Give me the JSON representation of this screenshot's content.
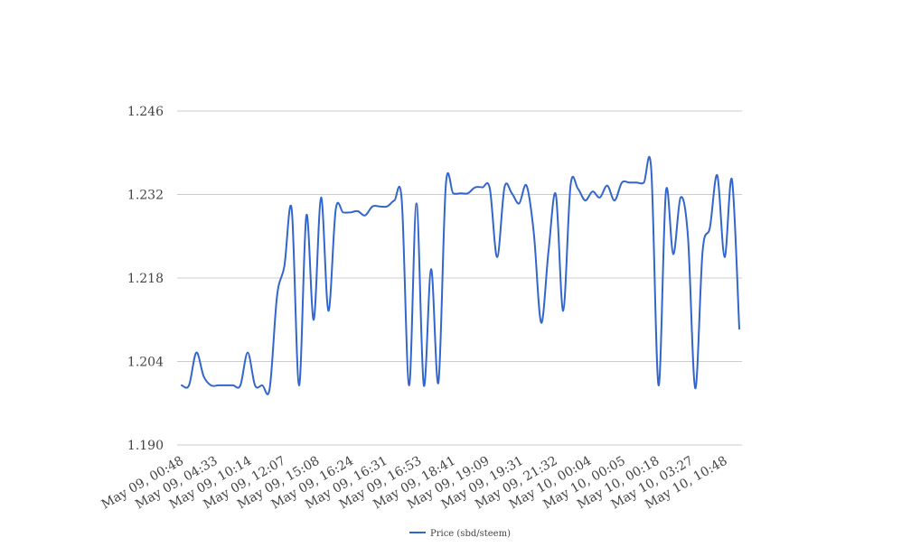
{
  "chart_data": {
    "type": "line",
    "title": "",
    "xlabel": "",
    "ylabel": "",
    "ylim": [
      1.19,
      1.246
    ],
    "yticks": [
      "1.190",
      "1.204",
      "1.218",
      "1.232",
      "1.246"
    ],
    "xtick_labels": [
      "May 09, 00:48",
      "May 09, 04:33",
      "May 09, 10:14",
      "May 09, 12:07",
      "May 09, 15:08",
      "May 09, 16:24",
      "May 09, 16:31",
      "May 09, 16:53",
      "May 09, 18:41",
      "May 09, 19:09",
      "May 09, 19:31",
      "May 09, 21:32",
      "May 10, 00:04",
      "May 10, 00:05",
      "May 10, 00:18",
      "May 10, 03:27",
      "May 10, 10:48"
    ],
    "grid": true,
    "legend_position": "bottom-center",
    "colors": {
      "series": "#3366cc",
      "grid": "#cccccc",
      "text": "#444444"
    },
    "series": [
      {
        "name": "Price (sbd/steem)",
        "values": [
          1.2,
          1.2,
          1.2055,
          1.2015,
          1.2,
          1.2,
          1.2,
          1.2,
          1.2,
          1.2055,
          1.2,
          1.2,
          1.1995,
          1.215,
          1.22,
          1.2295,
          1.2,
          1.2285,
          1.211,
          1.2315,
          1.2125,
          1.2295,
          1.229,
          1.229,
          1.2292,
          1.2285,
          1.23,
          1.23,
          1.23,
          1.231,
          1.231,
          1.2,
          1.2305,
          1.2,
          1.2195,
          1.2005,
          1.2335,
          1.2322,
          1.2322,
          1.2322,
          1.2332,
          1.2332,
          1.233,
          1.2215,
          1.2332,
          1.2322,
          1.2305,
          1.2335,
          1.2255,
          1.2105,
          1.2225,
          1.232,
          1.2125,
          1.2335,
          1.233,
          1.231,
          1.2325,
          1.2315,
          1.2335,
          1.231,
          1.234,
          1.234,
          1.234,
          1.234,
          1.2362,
          1.2,
          1.2325,
          1.222,
          1.2315,
          1.225,
          1.1995,
          1.2225,
          1.2265,
          1.2352,
          1.2215,
          1.2345,
          1.2095
        ]
      }
    ]
  }
}
